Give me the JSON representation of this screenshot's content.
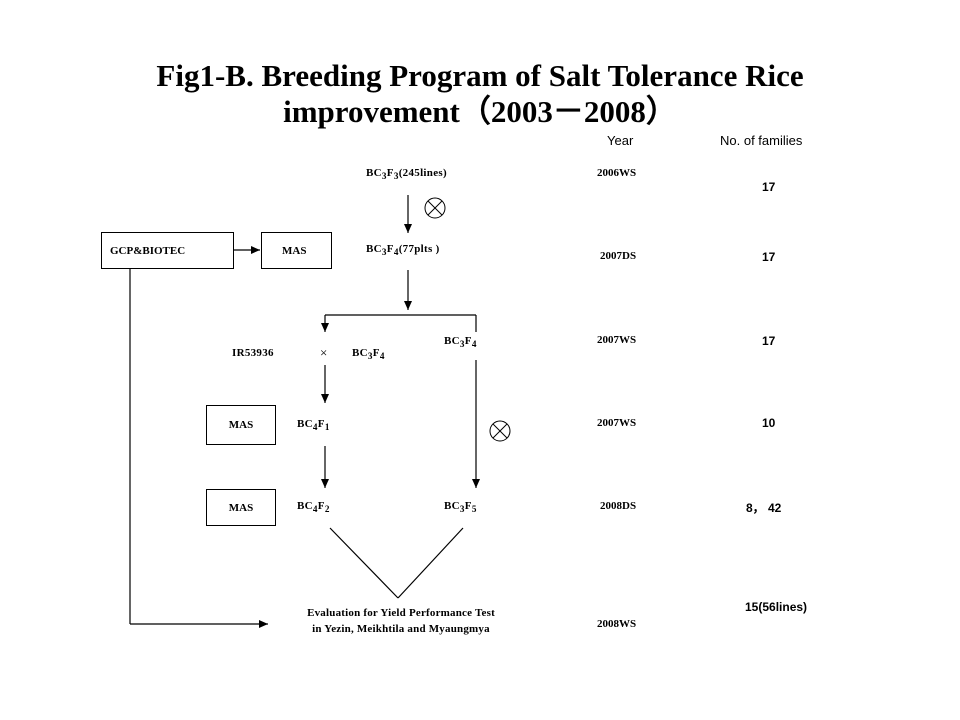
{
  "title": {
    "line1": "Fig1-B. Breeding Program of Salt Tolerance Rice",
    "line2": "improvement（2003－2008）"
  },
  "headers": {
    "year": "Year",
    "families": "No. of families"
  },
  "nodes": {
    "bc3f3": {
      "pre": "BC",
      "s1": "3",
      "mid": "F",
      "s2": "3",
      "post": "(245lines)"
    },
    "bc3f4_plts": {
      "pre": "BC",
      "s1": "3",
      "mid": "F",
      "s2": "4",
      "post": "(77plts )"
    },
    "bc3f4_right": {
      "pre": "BC",
      "s1": "3",
      "mid": "F",
      "s2": "4"
    },
    "parent": "IR53936",
    "cross_symbol": "×",
    "bc3f4_cross": {
      "pre": "BC",
      "s1": "3",
      "mid": "F",
      "s2": "4"
    },
    "bc4f1": {
      "pre": "BC",
      "s1": "4",
      "mid": "F",
      "s2": "1"
    },
    "bc4f2": {
      "pre": "BC",
      "s1": "4",
      "mid": "F",
      "s2": "2"
    },
    "bc3f5": {
      "pre": "BC",
      "s1": "3",
      "mid": "F",
      "s2": "5"
    }
  },
  "boxes": {
    "gcp": "GCP&BIOTEC",
    "mas_top": "MAS",
    "mas_f1": "MAS",
    "mas_f2": "MAS"
  },
  "evaluation": {
    "line1": "Evaluation for Yield Performance Test",
    "line2": "in Yezin, Meikhtila and Myaungmya"
  },
  "years": [
    "2006WS",
    "2007DS",
    "2007WS",
    "2007WS",
    "2008DS",
    "2008WS"
  ],
  "families": [
    "17",
    "17",
    "17",
    "10",
    "8， 42",
    "15(56lines)"
  ]
}
